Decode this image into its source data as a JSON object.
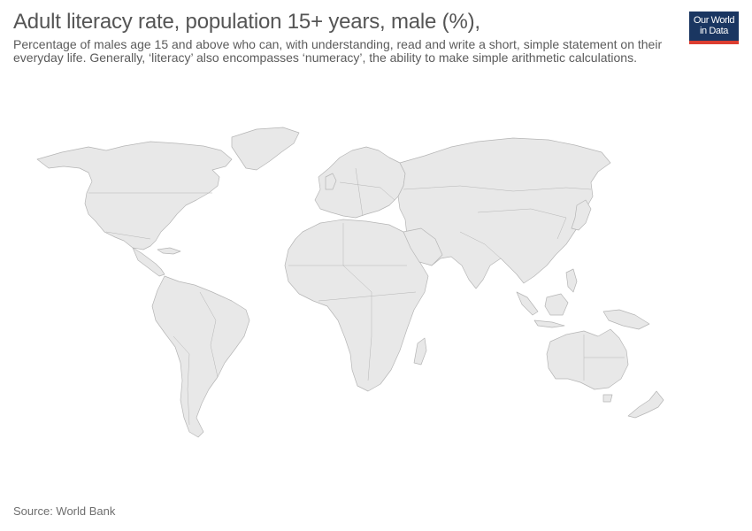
{
  "header": {
    "title": "Adult literacy rate, population 15+ years, male (%),",
    "subtitle": "Percentage of males age 15 and above who can, with understanding, read and write a short, simple statement on their everyday life. Generally, ‘literacy’ also encompasses ‘numeracy’, the ability to make simple arithmetic calculations."
  },
  "logo": {
    "line1": "Our World",
    "line2": "in Data"
  },
  "map": {
    "fill": "#e8e8e8",
    "stroke": "#b5b5b5",
    "no_data": true
  },
  "footer": {
    "source": "Source: World Bank"
  }
}
